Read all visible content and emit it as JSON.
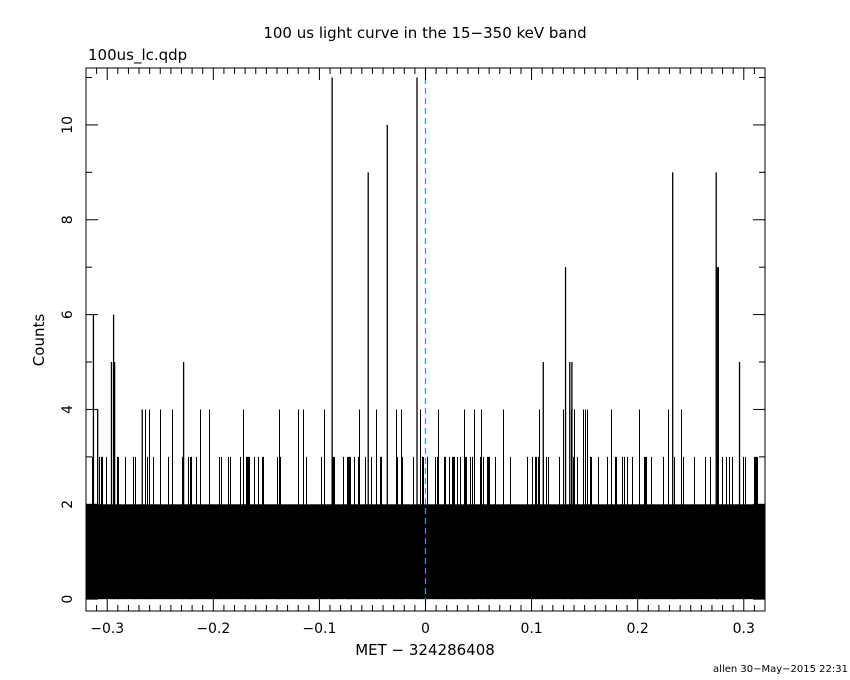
{
  "chart_data": {
    "type": "bar",
    "title": "100 us light curve in the 15−350 keV band",
    "subtitle": "100us_lc.qdp",
    "xlabel": "MET − 324286408",
    "ylabel": "Counts",
    "footer": "allen 30−May−2015 22:31",
    "xlim": [
      -0.32,
      0.32
    ],
    "ylim": [
      -0.25,
      11.2
    ],
    "x_ticks": [
      -0.3,
      -0.2,
      -0.1,
      0,
      0.1,
      0.2,
      0.3
    ],
    "x_tick_labels": [
      "−0.3",
      "−0.2",
      "−0.1",
      "0",
      "0.1",
      "0.2",
      "0.3"
    ],
    "y_ticks": [
      0,
      2,
      4,
      6,
      8,
      10
    ],
    "y_tick_labels": [
      "0",
      "2",
      "4",
      "6",
      "8",
      "10"
    ],
    "bin_width": 0.0001,
    "baseline": "dense background of 0–2 counts per 100 us bin across the full range",
    "reference_line": {
      "x": 0,
      "style": "dashed",
      "color": "#2a9fd6"
    },
    "spikes": {
      "x": [
        -0.313,
        -0.309,
        -0.296,
        -0.294,
        -0.293,
        -0.267,
        -0.228,
        -0.088,
        -0.054,
        -0.036,
        -0.008,
        0.132,
        0.136,
        0.138,
        0.111,
        0.233,
        0.274,
        0.275,
        0.276,
        0.296
      ],
      "values": [
        6,
        4,
        5,
        6,
        5,
        4,
        5,
        11,
        9,
        10,
        11,
        7,
        5,
        5,
        5,
        9,
        9,
        7,
        7,
        5
      ]
    },
    "threes_density": 0.2,
    "fours_density": 0.05,
    "colors": {
      "bars": "#000000",
      "reference_line": "#2a9fd6",
      "frame": "#000000"
    }
  }
}
